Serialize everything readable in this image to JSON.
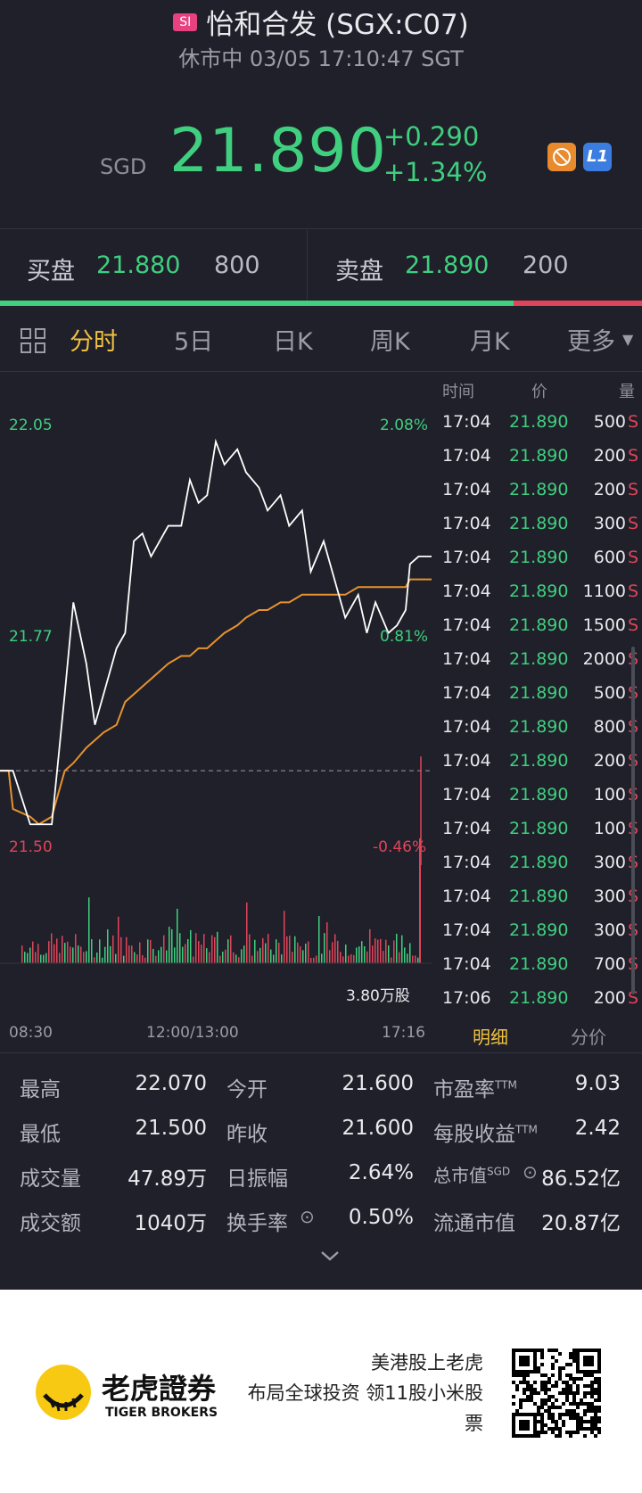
{
  "header": {
    "badge": "SI",
    "title": "怡和合发 (SGX:C07)",
    "status": "休市中 03/05 17:10:47 SGT"
  },
  "quote": {
    "currency": "SGD",
    "price": "21.890",
    "change": "+0.290",
    "change_pct": "+1.34%",
    "level_badge": "L1"
  },
  "bidask": {
    "bid_label": "买盘",
    "bid_price": "21.880",
    "bid_volume": "800",
    "ask_label": "卖盘",
    "ask_price": "21.890",
    "ask_volume": "200",
    "bid_ratio": 0.8
  },
  "tabs": {
    "intraday": "分时",
    "day5": "5日",
    "daily": "日K",
    "weekly": "周K",
    "monthly": "月K",
    "more": "更多"
  },
  "chart_labels": {
    "price_high": "22.05",
    "price_mid": "21.77",
    "price_low": "21.50",
    "pct_high": "2.08%",
    "pct_mid": "0.81%",
    "pct_low": "-0.46%",
    "volume": "3.80万股",
    "time_start": "08:30",
    "time_mid": "12:00/13:00",
    "time_end": "17:16"
  },
  "trades": {
    "headers": {
      "time": "时间",
      "price": "价",
      "volume": "量"
    },
    "rows": [
      {
        "time": "17:04",
        "price": "21.890",
        "volume": "500",
        "side": "S"
      },
      {
        "time": "17:04",
        "price": "21.890",
        "volume": "200",
        "side": "S"
      },
      {
        "time": "17:04",
        "price": "21.890",
        "volume": "200",
        "side": "S"
      },
      {
        "time": "17:04",
        "price": "21.890",
        "volume": "300",
        "side": "S"
      },
      {
        "time": "17:04",
        "price": "21.890",
        "volume": "600",
        "side": "S"
      },
      {
        "time": "17:04",
        "price": "21.890",
        "volume": "1100",
        "side": "S"
      },
      {
        "time": "17:04",
        "price": "21.890",
        "volume": "1500",
        "side": "S"
      },
      {
        "time": "17:04",
        "price": "21.890",
        "volume": "2000",
        "side": "S"
      },
      {
        "time": "17:04",
        "price": "21.890",
        "volume": "500",
        "side": "S"
      },
      {
        "time": "17:04",
        "price": "21.890",
        "volume": "800",
        "side": "S"
      },
      {
        "time": "17:04",
        "price": "21.890",
        "volume": "200",
        "side": "S"
      },
      {
        "time": "17:04",
        "price": "21.890",
        "volume": "100",
        "side": "S"
      },
      {
        "time": "17:04",
        "price": "21.890",
        "volume": "100",
        "side": "S"
      },
      {
        "time": "17:04",
        "price": "21.890",
        "volume": "300",
        "side": "S"
      },
      {
        "time": "17:04",
        "price": "21.890",
        "volume": "300",
        "side": "S"
      },
      {
        "time": "17:04",
        "price": "21.890",
        "volume": "300",
        "side": "S"
      },
      {
        "time": "17:04",
        "price": "21.890",
        "volume": "700",
        "side": "S"
      },
      {
        "time": "17:06",
        "price": "21.890",
        "volume": "200",
        "side": "S"
      }
    ],
    "tab_detail": "明细",
    "tab_price": "分价"
  },
  "stats": {
    "high_label": "最高",
    "high": "22.070",
    "open_label": "今开",
    "open": "21.600",
    "pe_label": "市盈率",
    "pe_sup": "TTM",
    "pe": "9.03",
    "low_label": "最低",
    "low": "21.500",
    "prev_label": "昨收",
    "prev": "21.600",
    "eps_label": "每股收益",
    "eps_sup": "TTM",
    "eps": "2.42",
    "vol_label": "成交量",
    "vol": "47.89万",
    "amp_label": "日振幅",
    "amp": "2.64%",
    "mcap_label": "总市值",
    "mcap_sup": "SGD",
    "mcap": "86.52亿",
    "amt_label": "成交额",
    "amt": "1040万",
    "turn_label": "换手率",
    "turn": "0.50%",
    "float_label": "流通市值",
    "float": "20.87亿"
  },
  "footer": {
    "brand_cn": "老虎證券",
    "brand_en": "TIGER BROKERS",
    "slogan1": "美港股上老虎",
    "slogan2": "布局全球投资 领11股小米股",
    "slogan3": "票"
  },
  "chart_data": {
    "type": "line",
    "x_range": [
      "08:30",
      "17:16"
    ],
    "ylim": [
      21.5,
      22.05
    ],
    "prev_close": 21.6,
    "series": [],
    "x": [
      0,
      0.02,
      0.03,
      0.07,
      0.09,
      0.12,
      0.15,
      0.17,
      0.2,
      0.22,
      0.24,
      0.27,
      0.29,
      0.31,
      0.33,
      0.35,
      0.37,
      0.39,
      0.42,
      0.44,
      0.46,
      0.48,
      0.5,
      0.52,
      0.55,
      0.57,
      0.6,
      0.62,
      0.65,
      0.67,
      0.7,
      0.72,
      0.75,
      0.78,
      0.8,
      0.83,
      0.85,
      0.87,
      0.9,
      0.92,
      0.94,
      0.95,
      0.97,
      1.0
    ],
    "price": [
      21.6,
      21.6,
      21.6,
      21.53,
      21.53,
      21.53,
      21.7,
      21.82,
      21.74,
      21.66,
      21.7,
      21.76,
      21.78,
      21.9,
      21.91,
      21.88,
      21.9,
      21.92,
      21.92,
      21.98,
      21.95,
      21.96,
      22.03,
      22.0,
      22.02,
      21.99,
      21.97,
      21.94,
      21.96,
      21.92,
      21.94,
      21.86,
      21.9,
      21.84,
      21.8,
      21.83,
      21.78,
      21.82,
      21.78,
      21.79,
      21.81,
      21.87,
      21.88,
      21.88
    ],
    "avg": [
      21.6,
      21.6,
      21.55,
      21.54,
      21.53,
      21.54,
      21.6,
      21.61,
      21.63,
      21.64,
      21.65,
      21.66,
      21.69,
      21.7,
      21.71,
      21.72,
      21.73,
      21.74,
      21.75,
      21.75,
      21.76,
      21.76,
      21.77,
      21.78,
      21.79,
      21.8,
      21.81,
      21.81,
      21.82,
      21.82,
      21.83,
      21.83,
      21.83,
      21.83,
      21.83,
      21.84,
      21.84,
      21.84,
      21.84,
      21.84,
      21.84,
      21.85,
      21.85,
      21.85
    ]
  }
}
